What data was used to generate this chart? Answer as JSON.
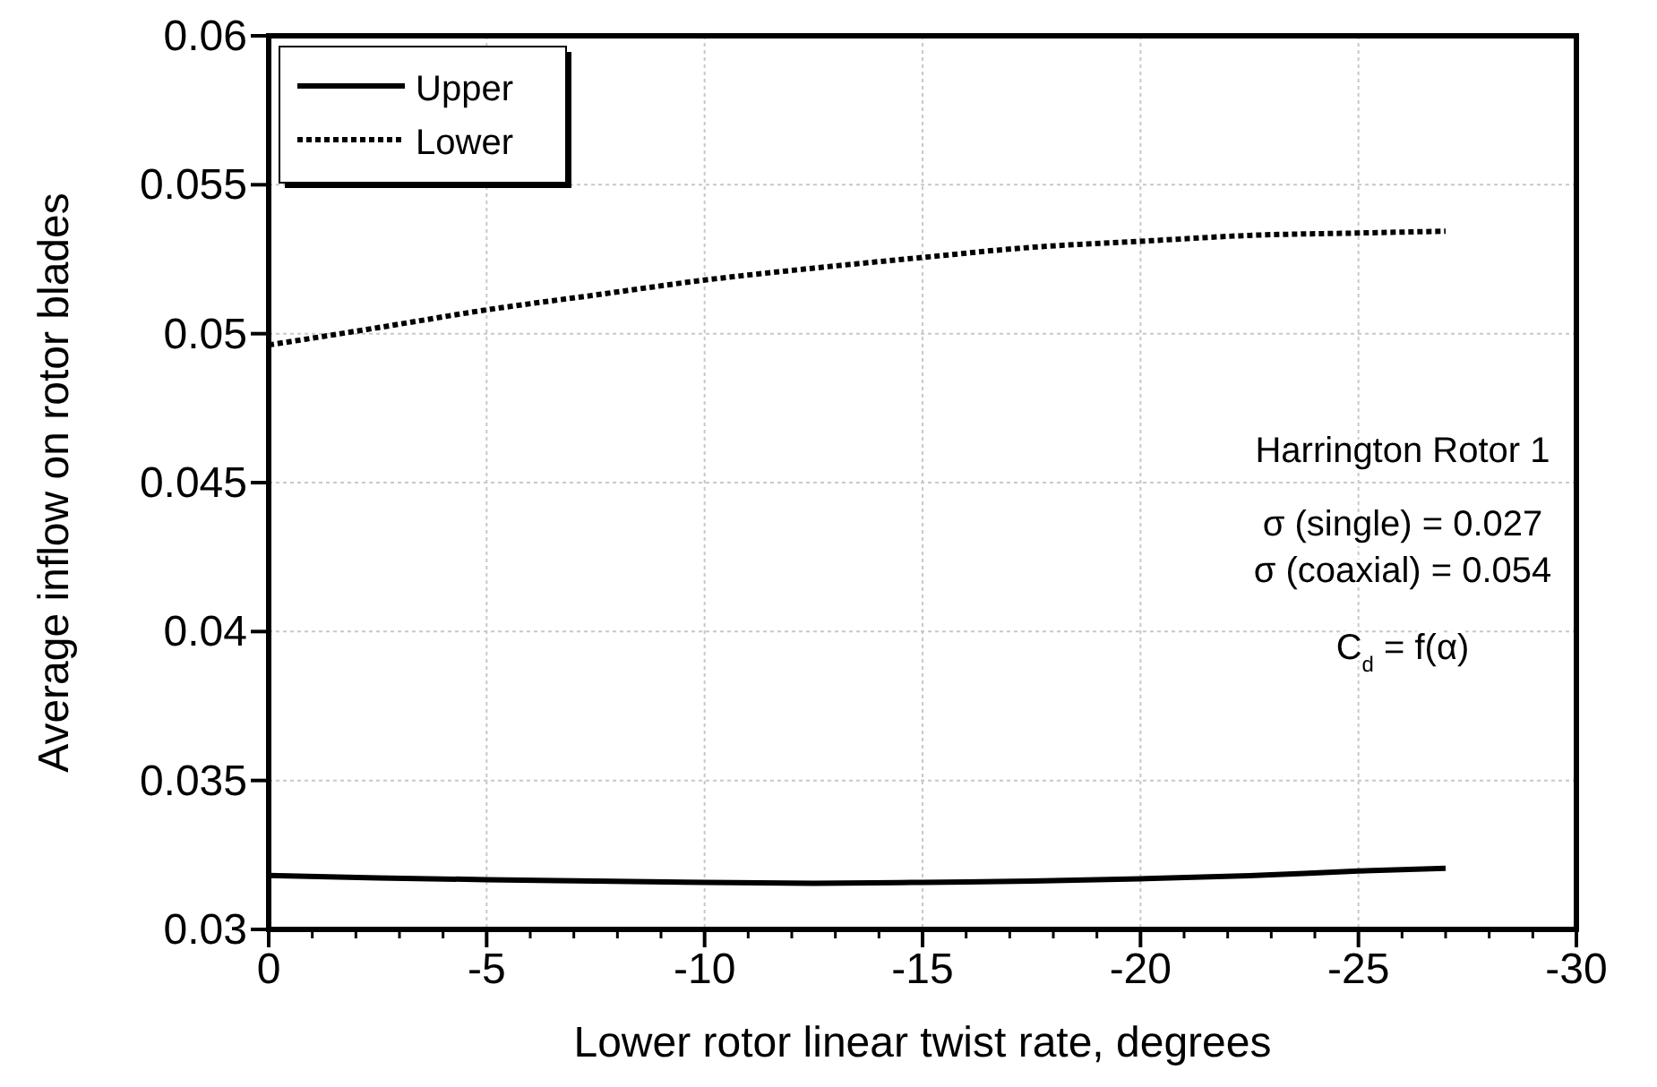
{
  "chart_data": {
    "type": "line",
    "xlabel": "Lower rotor linear twist rate, degrees",
    "ylabel": "Average inflow on rotor blades",
    "x": [
      0,
      -2.5,
      -5,
      -7.5,
      -10,
      -12.5,
      -15,
      -17.5,
      -20,
      -22.5,
      -25,
      -27
    ],
    "series": [
      {
        "name": "Upper",
        "color": "#000000",
        "line_style": "solid",
        "values": [
          0.03181,
          0.03173,
          0.03167,
          0.03162,
          0.03158,
          0.03155,
          0.03158,
          0.03162,
          0.0317,
          0.0318,
          0.03196,
          0.03205
        ]
      },
      {
        "name": "Lower",
        "color": "#000000",
        "line_style": "dotted",
        "values": [
          0.04962,
          0.0502,
          0.0508,
          0.0513,
          0.0518,
          0.0522,
          0.05256,
          0.0529,
          0.0531,
          0.0533,
          0.05338,
          0.05344
        ]
      }
    ],
    "xlim": [
      0,
      -30
    ],
    "xticks": [
      0,
      -5,
      -10,
      -15,
      -20,
      -25,
      -30
    ],
    "ylim": [
      0.03,
      0.06
    ],
    "yticks": [
      0.03,
      0.035,
      0.04,
      0.045,
      0.05,
      0.055,
      0.06
    ],
    "grid": true,
    "legend": "top left",
    "annotations": [
      "Harrington Rotor 1",
      "σ (single) = 0.027",
      "σ (coaxial) = 0.054",
      "C$_{d}$ = f(α)"
    ]
  }
}
